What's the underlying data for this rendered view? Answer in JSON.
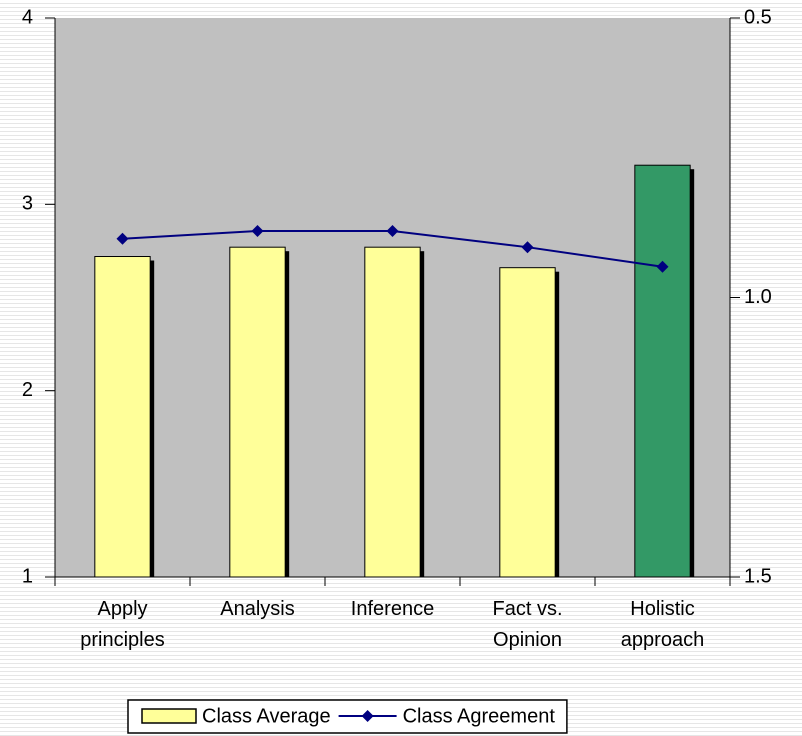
{
  "chart_data": {
    "type": "bar",
    "categories": [
      "Apply\nprinciples",
      "Analysis",
      "Inference",
      "Fact vs.\nOpinion",
      "Holistic\napproach"
    ],
    "series": [
      {
        "name": "Class Average",
        "type": "bar",
        "color": "#ffff99",
        "colors": [
          "#ffff99",
          "#ffff99",
          "#ffff99",
          "#ffff99",
          "#339966"
        ],
        "values": [
          2.72,
          2.77,
          2.77,
          2.66,
          3.21
        ]
      },
      {
        "name": "Class Agreement",
        "type": "line",
        "axis": "y2",
        "color": "#000080",
        "values": [
          0.895,
          0.881,
          0.881,
          0.91,
          0.945
        ]
      }
    ],
    "ylim": [
      1,
      4
    ],
    "yticks": [
      1,
      2,
      3,
      4
    ],
    "y2lim": [
      0.5,
      1.5
    ],
    "y2ticks": [
      0.5,
      {
        "value": 1,
        "label": "1.0"
      },
      1.5
    ],
    "y2_reversed": true,
    "legend": "bottom"
  }
}
